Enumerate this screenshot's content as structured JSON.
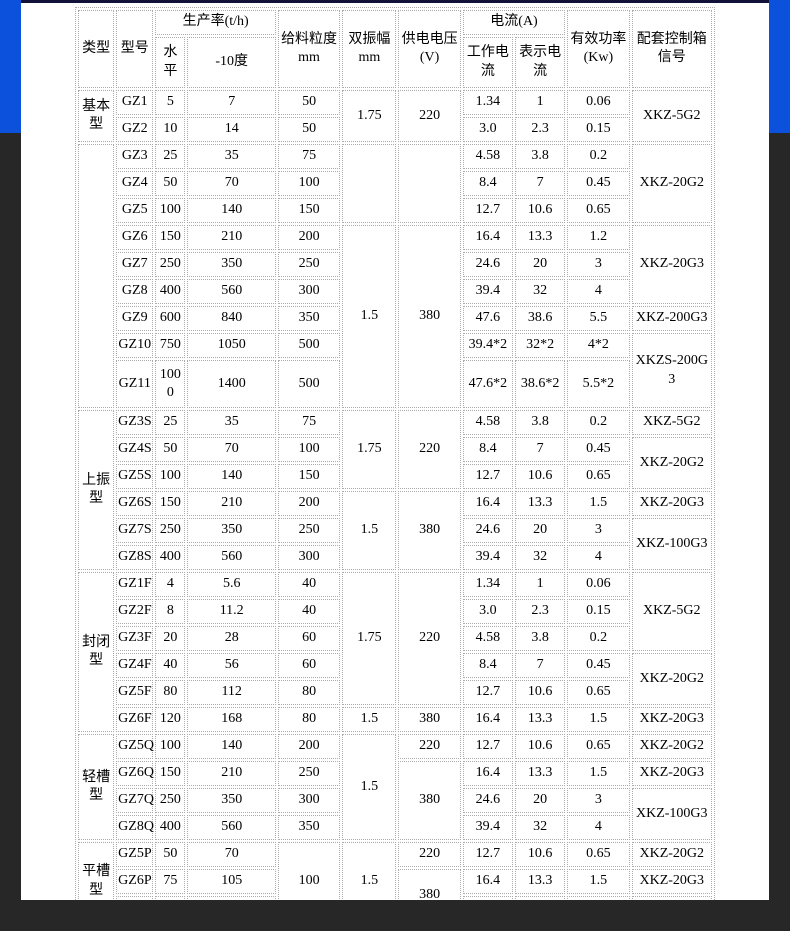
{
  "page": {
    "colors": {
      "header_band_blue": "#0b51dc",
      "outer_dark": "#272727",
      "top_rule_navy": "#11113a",
      "panel_white": "#ffffff",
      "table_border_gray": "#ababab",
      "text_black": "#000000"
    }
  },
  "table": {
    "grid": [
      {
        "hdr": true,
        "cls": "hr1",
        "cells": [
          {
            "t": "类型",
            "rs": 2
          },
          {
            "t": "型号",
            "rs": 2
          },
          {
            "t": "生产率(t/h)",
            "cs": 2
          },
          {
            "t": "给料粒度 mm",
            "rs": 2
          },
          {
            "t": "双振幅 mm",
            "rs": 2
          },
          {
            "t": "供电电压 (V)",
            "rs": 2
          },
          {
            "t": "电流(A)",
            "cs": 2
          },
          {
            "t": "有效功率 (Kw)",
            "rs": 2
          },
          {
            "t": "配套控制箱信号",
            "rs": 2
          }
        ]
      },
      {
        "hdr": true,
        "cls": "hr2",
        "cells": [
          {
            "t": "水平"
          },
          {
            "t": "-10度"
          },
          {
            "t": "工作电流"
          },
          {
            "t": "表示电流"
          }
        ]
      },
      {
        "cells": [
          {
            "t": "基本型",
            "rs": 2
          },
          {
            "t": "GZ1"
          },
          {
            "t": "5"
          },
          {
            "t": "7"
          },
          {
            "t": "50"
          },
          {
            "t": "1.75",
            "rs": 2
          },
          {
            "t": "220",
            "rs": 2
          },
          {
            "t": "1.34"
          },
          {
            "t": "1"
          },
          {
            "t": "0.06"
          },
          {
            "t": "XKZ-5G2",
            "rs": 2,
            "cls": "ctrl"
          }
        ]
      },
      {
        "cells": [
          {
            "t": "GZ2"
          },
          {
            "t": "10"
          },
          {
            "t": "14"
          },
          {
            "t": "50"
          },
          {
            "t": "3.0"
          },
          {
            "t": "2.3"
          },
          {
            "t": "0.15"
          }
        ]
      },
      {
        "cells": [
          {
            "t": "",
            "rs": 9
          },
          {
            "t": "GZ3"
          },
          {
            "t": "25"
          },
          {
            "t": "35"
          },
          {
            "t": "75"
          },
          {
            "t": "",
            "rs": 3
          },
          {
            "t": "",
            "rs": 3
          },
          {
            "t": "4.58"
          },
          {
            "t": "3.8"
          },
          {
            "t": "0.2"
          },
          {
            "t": "XKZ-20G2",
            "rs": 3,
            "cls": "ctrl"
          }
        ]
      },
      {
        "cells": [
          {
            "t": "GZ4"
          },
          {
            "t": "50"
          },
          {
            "t": "70"
          },
          {
            "t": "100"
          },
          {
            "t": "8.4"
          },
          {
            "t": "7"
          },
          {
            "t": "0.45"
          }
        ]
      },
      {
        "cells": [
          {
            "t": "GZ5"
          },
          {
            "t": "100"
          },
          {
            "t": "140"
          },
          {
            "t": "150"
          },
          {
            "t": "12.7"
          },
          {
            "t": "10.6"
          },
          {
            "t": "0.65"
          }
        ]
      },
      {
        "cells": [
          {
            "t": "GZ6"
          },
          {
            "t": "150"
          },
          {
            "t": "210"
          },
          {
            "t": "200"
          },
          {
            "t": "1.5",
            "rs": 6
          },
          {
            "t": "380",
            "rs": 6
          },
          {
            "t": "16.4"
          },
          {
            "t": "13.3"
          },
          {
            "t": "1.2"
          },
          {
            "t": "XKZ-20G3",
            "rs": 3,
            "cls": "ctrl"
          }
        ]
      },
      {
        "cells": [
          {
            "t": "GZ7"
          },
          {
            "t": "250"
          },
          {
            "t": "350"
          },
          {
            "t": "250"
          },
          {
            "t": "24.6"
          },
          {
            "t": "20"
          },
          {
            "t": "3"
          }
        ]
      },
      {
        "cells": [
          {
            "t": "GZ8"
          },
          {
            "t": "400"
          },
          {
            "t": "560"
          },
          {
            "t": "300"
          },
          {
            "t": "39.4"
          },
          {
            "t": "32"
          },
          {
            "t": "4"
          }
        ]
      },
      {
        "cells": [
          {
            "t": "GZ9"
          },
          {
            "t": "600"
          },
          {
            "t": "840"
          },
          {
            "t": "350"
          },
          {
            "t": "47.6"
          },
          {
            "t": "38.6"
          },
          {
            "t": "5.5"
          },
          {
            "t": "XKZ-200G3",
            "cls": "ctrl"
          }
        ]
      },
      {
        "cells": [
          {
            "t": "GZ10"
          },
          {
            "t": "750"
          },
          {
            "t": "1050"
          },
          {
            "t": "500"
          },
          {
            "t": "39.4*2"
          },
          {
            "t": "32*2"
          },
          {
            "t": "4*2"
          },
          {
            "t": "XKZS-200G3",
            "rs": 2,
            "cls": "ctrl"
          }
        ]
      },
      {
        "cls": "tall",
        "cells": [
          {
            "t": "GZ11"
          },
          {
            "t": "1000",
            "cls": "ba"
          },
          {
            "t": "1400"
          },
          {
            "t": "500"
          },
          {
            "t": "47.6*2"
          },
          {
            "t": "38.6*2"
          },
          {
            "t": "5.5*2"
          }
        ]
      },
      {
        "cells": [
          {
            "t": "上振型",
            "rs": 6
          },
          {
            "t": "GZ3S"
          },
          {
            "t": "25"
          },
          {
            "t": "35"
          },
          {
            "t": "75"
          },
          {
            "t": "1.75",
            "rs": 3
          },
          {
            "t": "220",
            "rs": 3
          },
          {
            "t": "4.58"
          },
          {
            "t": "3.8"
          },
          {
            "t": "0.2"
          },
          {
            "t": "XKZ-5G2",
            "cls": "ctrl"
          }
        ]
      },
      {
        "cells": [
          {
            "t": "GZ4S"
          },
          {
            "t": "50"
          },
          {
            "t": "70"
          },
          {
            "t": "100"
          },
          {
            "t": "8.4"
          },
          {
            "t": "7"
          },
          {
            "t": "0.45"
          },
          {
            "t": "XKZ-20G2",
            "rs": 2,
            "cls": "ctrl"
          }
        ]
      },
      {
        "cells": [
          {
            "t": "GZ5S"
          },
          {
            "t": "100"
          },
          {
            "t": "140"
          },
          {
            "t": "150"
          },
          {
            "t": "12.7"
          },
          {
            "t": "10.6"
          },
          {
            "t": "0.65"
          }
        ]
      },
      {
        "cells": [
          {
            "t": "GZ6S"
          },
          {
            "t": "150"
          },
          {
            "t": "210"
          },
          {
            "t": "200"
          },
          {
            "t": "1.5",
            "rs": 3
          },
          {
            "t": "380",
            "rs": 3
          },
          {
            "t": "16.4"
          },
          {
            "t": "13.3"
          },
          {
            "t": "1.5"
          },
          {
            "t": "XKZ-20G3",
            "cls": "ctrl"
          }
        ]
      },
      {
        "cells": [
          {
            "t": "GZ7S"
          },
          {
            "t": "250"
          },
          {
            "t": "350"
          },
          {
            "t": "250"
          },
          {
            "t": "24.6"
          },
          {
            "t": "20"
          },
          {
            "t": "3"
          },
          {
            "t": "XKZ-100G3",
            "rs": 2,
            "cls": "ctrl"
          }
        ]
      },
      {
        "cells": [
          {
            "t": "GZ8S"
          },
          {
            "t": "400"
          },
          {
            "t": "560"
          },
          {
            "t": "300"
          },
          {
            "t": "39.4"
          },
          {
            "t": "32"
          },
          {
            "t": "4"
          }
        ]
      },
      {
        "cells": [
          {
            "t": "封闭型",
            "rs": 6
          },
          {
            "t": "GZ1F"
          },
          {
            "t": "4"
          },
          {
            "t": "5.6"
          },
          {
            "t": "40"
          },
          {
            "t": "1.75",
            "rs": 5
          },
          {
            "t": "220",
            "rs": 5
          },
          {
            "t": "1.34"
          },
          {
            "t": "1"
          },
          {
            "t": "0.06"
          },
          {
            "t": "XKZ-5G2",
            "rs": 3,
            "cls": "ctrl"
          }
        ]
      },
      {
        "cells": [
          {
            "t": "GZ2F"
          },
          {
            "t": "8"
          },
          {
            "t": "11.2"
          },
          {
            "t": "40"
          },
          {
            "t": "3.0"
          },
          {
            "t": "2.3"
          },
          {
            "t": "0.15"
          }
        ]
      },
      {
        "cells": [
          {
            "t": "GZ3F"
          },
          {
            "t": "20"
          },
          {
            "t": "28"
          },
          {
            "t": "60"
          },
          {
            "t": "4.58"
          },
          {
            "t": "3.8"
          },
          {
            "t": "0.2"
          }
        ]
      },
      {
        "cells": [
          {
            "t": "GZ4F"
          },
          {
            "t": "40"
          },
          {
            "t": "56"
          },
          {
            "t": "60"
          },
          {
            "t": "8.4"
          },
          {
            "t": "7"
          },
          {
            "t": "0.45"
          },
          {
            "t": "XKZ-20G2",
            "rs": 2,
            "cls": "ctrl"
          }
        ]
      },
      {
        "cells": [
          {
            "t": "GZ5F"
          },
          {
            "t": "80"
          },
          {
            "t": "112"
          },
          {
            "t": "80"
          },
          {
            "t": "12.7"
          },
          {
            "t": "10.6"
          },
          {
            "t": "0.65"
          }
        ]
      },
      {
        "cells": [
          {
            "t": "GZ6F"
          },
          {
            "t": "120"
          },
          {
            "t": "168"
          },
          {
            "t": "80"
          },
          {
            "t": "1.5"
          },
          {
            "t": "380"
          },
          {
            "t": "16.4"
          },
          {
            "t": "13.3"
          },
          {
            "t": "1.5"
          },
          {
            "t": "XKZ-20G3",
            "cls": "ctrl"
          }
        ]
      },
      {
        "cells": [
          {
            "t": "轻槽型",
            "rs": 4
          },
          {
            "t": "GZ5Q"
          },
          {
            "t": "100"
          },
          {
            "t": "140"
          },
          {
            "t": "200"
          },
          {
            "t": "1.5",
            "rs": 4
          },
          {
            "t": "220"
          },
          {
            "t": "12.7"
          },
          {
            "t": "10.6"
          },
          {
            "t": "0.65"
          },
          {
            "t": "XKZ-20G2",
            "cls": "ctrl"
          }
        ]
      },
      {
        "cells": [
          {
            "t": "GZ6Q"
          },
          {
            "t": "150"
          },
          {
            "t": "210"
          },
          {
            "t": "250"
          },
          {
            "t": "380",
            "rs": 3
          },
          {
            "t": "16.4"
          },
          {
            "t": "13.3"
          },
          {
            "t": "1.5"
          },
          {
            "t": "XKZ-20G3",
            "cls": "ctrl"
          }
        ]
      },
      {
        "cells": [
          {
            "t": "GZ7Q"
          },
          {
            "t": "250"
          },
          {
            "t": "350"
          },
          {
            "t": "300"
          },
          {
            "t": "24.6"
          },
          {
            "t": "20"
          },
          {
            "t": "3"
          },
          {
            "t": "XKZ-100G3",
            "rs": 2,
            "cls": "ctrl"
          }
        ]
      },
      {
        "cells": [
          {
            "t": "GZ8Q"
          },
          {
            "t": "400"
          },
          {
            "t": "560"
          },
          {
            "t": "350"
          },
          {
            "t": "39.4"
          },
          {
            "t": "32"
          },
          {
            "t": "4"
          }
        ]
      },
      {
        "cells": [
          {
            "t": "平槽型",
            "rs": 3
          },
          {
            "t": "GZ5P"
          },
          {
            "t": "50"
          },
          {
            "t": "70"
          },
          {
            "t": "100",
            "rs": 3
          },
          {
            "t": "1.5",
            "rs": 3
          },
          {
            "t": "220"
          },
          {
            "t": "12.7"
          },
          {
            "t": "10.6"
          },
          {
            "t": "0.65"
          },
          {
            "t": "XKZ-20G2",
            "cls": "ctrl"
          }
        ]
      },
      {
        "cells": [
          {
            "t": "GZ6P"
          },
          {
            "t": "75"
          },
          {
            "t": "105"
          },
          {
            "t": "380",
            "rs": 2
          },
          {
            "t": "16.4"
          },
          {
            "t": "13.3"
          },
          {
            "t": "1.5"
          },
          {
            "t": "XKZ-20G3",
            "cls": "ctrl"
          }
        ]
      },
      {
        "cells": [
          {
            "t": ""
          },
          {
            "t": ""
          },
          {
            "t": ""
          },
          {
            "t": ""
          },
          {
            "t": ""
          },
          {
            "t": ""
          },
          {
            "t": ""
          }
        ]
      }
    ]
  }
}
